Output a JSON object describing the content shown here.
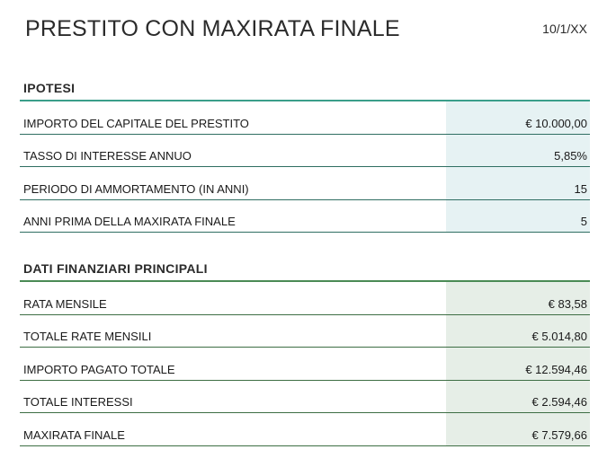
{
  "header": {
    "title": "PRESTITO CON MAXIRATA FINALE",
    "date": "10/1/XX"
  },
  "assumptions": {
    "title": "IPOTESI",
    "rows": [
      {
        "label": "IMPORTO DEL CAPITALE DEL PRESTITO",
        "value": "€ 10.000,00"
      },
      {
        "label": "TASSO DI INTERESSE ANNUO",
        "value": "5,85%"
      },
      {
        "label": "PERIODO DI AMMORTAMENTO (IN ANNI)",
        "value": "15"
      },
      {
        "label": "ANNI PRIMA DELLA MAXIRATA FINALE",
        "value": "5"
      }
    ]
  },
  "results": {
    "title": "DATI FINANZIARI PRINCIPALI",
    "rows": [
      {
        "label": "RATA MENSILE",
        "value": "€ 83,58"
      },
      {
        "label": "TOTALE RATE MENSILI",
        "value": "€ 5.014,80"
      },
      {
        "label": "IMPORTO PAGATO TOTALE",
        "value": "€ 12.594,46"
      },
      {
        "label": "TOTALE INTERESSI",
        "value": "€ 2.594,46"
      },
      {
        "label": "MAXIRATA FINALE",
        "value": "€ 7.579,66"
      }
    ]
  },
  "colors": {
    "assumptions_accent": "#3a9e8a",
    "assumptions_fill": "#e6f2f3",
    "results_accent": "#4a8a55",
    "results_fill": "#e6eee7"
  }
}
